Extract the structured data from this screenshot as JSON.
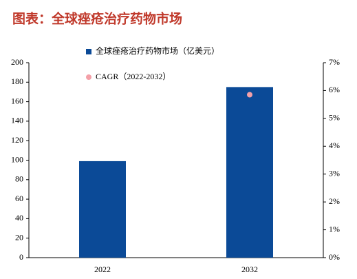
{
  "chart_data": {
    "type": "bar",
    "title": "图表：全球痤疮治疗药物市场",
    "categories": [
      "2022",
      "2032"
    ],
    "series": [
      {
        "name": "全球痤疮治疗药物市场（亿美元）",
        "color": "#0b4a97",
        "values": [
          99,
          175
        ]
      },
      {
        "name": "CAGR（2022-2032）",
        "color": "#f4a0a8",
        "values": [
          null,
          5.85
        ],
        "axis": "y2",
        "type": "scatter"
      }
    ],
    "ylim": [
      0,
      200
    ],
    "yticks": [
      0,
      20,
      40,
      60,
      80,
      100,
      120,
      140,
      160,
      180,
      200
    ],
    "y2lim": [
      0,
      7
    ],
    "y2ticks": [
      {
        "value": 0,
        "label": "0%"
      },
      {
        "value": 1,
        "label": "1%"
      },
      {
        "value": 2,
        "label": "2%"
      },
      {
        "value": 3,
        "label": "3%"
      },
      {
        "value": 4,
        "label": "4%"
      },
      {
        "value": 5,
        "label": "5%"
      },
      {
        "value": 6,
        "label": "6%"
      },
      {
        "value": 7,
        "label": "7%"
      }
    ],
    "grid": false
  }
}
